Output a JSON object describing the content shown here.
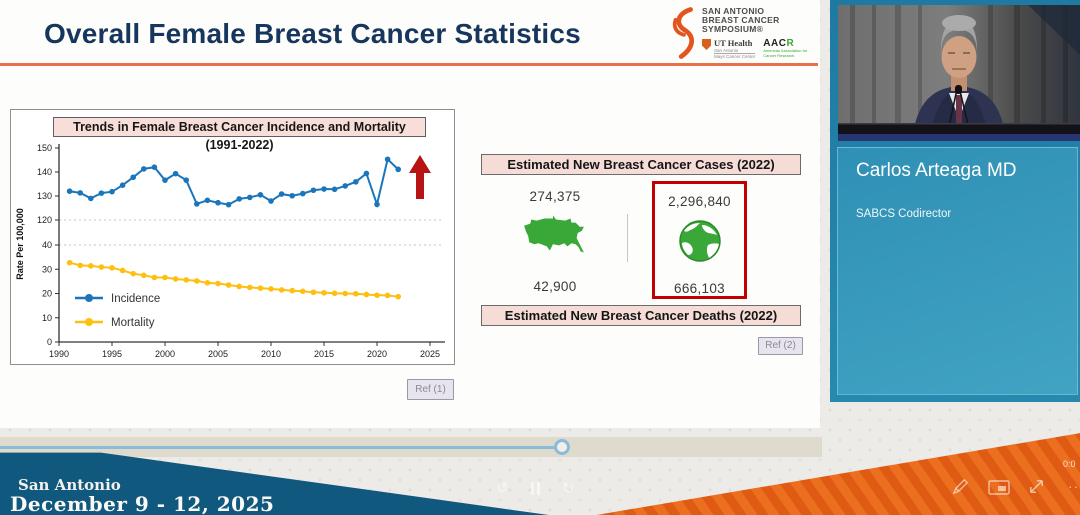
{
  "slide": {
    "title": "Overall Female Breast Cancer Statistics",
    "logo": {
      "org_lines": [
        "SAN ANTONIO",
        "BREAST CANCER",
        "SYMPOSIUM®"
      ],
      "ut_health": "UT Health",
      "ut_sub": "San Antonio",
      "ut_center": "Mays Cancer Center",
      "aacr": "AAC",
      "aacr_r": "R",
      "aacr_sub": "American Association for Cancer Research"
    },
    "chart_ref_label": "Ref (1)",
    "stats_ref_label": "Ref (2)",
    "stats": {
      "cases_header": "Estimated New Breast Cancer Cases (2022)",
      "deaths_header": "Estimated New Breast Cancer Deaths (2022)",
      "us": {
        "cases": "274,375",
        "deaths": "42,900"
      },
      "world": {
        "cases": "2,296,840",
        "deaths": "666,103"
      }
    }
  },
  "chart_data": {
    "type": "line",
    "title": "Trends in Female Breast Cancer Incidence and Mortality (1991-2022)",
    "xlabel": "",
    "ylabel": "Rate Per 100,000",
    "xlim": [
      1990,
      2025
    ],
    "broken_y_axis": true,
    "y_ticks_upper": [
      120,
      130,
      140,
      150
    ],
    "y_ticks_lower": [
      0,
      10,
      20,
      30,
      40
    ],
    "x_ticks": [
      1990,
      1995,
      2000,
      2005,
      2010,
      2015,
      2020,
      2025
    ],
    "dotted_gridlines_at": [
      120,
      40
    ],
    "legend_position": "inside-bottom-left",
    "years": [
      1991,
      1992,
      1993,
      1994,
      1995,
      1996,
      1997,
      1998,
      1999,
      2000,
      2001,
      2002,
      2003,
      2004,
      2005,
      2006,
      2007,
      2008,
      2009,
      2010,
      2011,
      2012,
      2013,
      2014,
      2015,
      2016,
      2017,
      2018,
      2019,
      2020,
      2021,
      2022
    ],
    "series": [
      {
        "name": "Incidence",
        "color": "#1b75bb",
        "values": [
          132,
          131.3,
          129,
          131.2,
          131.8,
          134.5,
          137.8,
          141.3,
          142,
          136.6,
          139.3,
          136.6,
          126.7,
          128.2,
          127.2,
          126.4,
          128.8,
          129.4,
          130.5,
          127.9,
          130.8,
          130.1,
          131,
          132.4,
          132.9,
          132.8,
          134.2,
          135.9,
          139.4,
          126.5,
          145.3,
          141.1
        ]
      },
      {
        "name": "Mortality",
        "color": "#fdc010",
        "values": [
          32.7,
          31.6,
          31.4,
          30.9,
          30.6,
          29.5,
          28.2,
          27.5,
          26.6,
          26.6,
          26,
          25.6,
          25.2,
          24.4,
          24.1,
          23.5,
          22.9,
          22.5,
          22.2,
          21.9,
          21.5,
          21.2,
          20.9,
          20.5,
          20.3,
          20.1,
          20,
          19.9,
          19.6,
          19.3,
          19.2,
          18.7
        ]
      }
    ],
    "annotation": {
      "type": "up-arrow",
      "color": "#b81414"
    }
  },
  "speaker": {
    "name": "Carlos Arteaga MD",
    "role": "SABCS Codirector"
  },
  "footer": {
    "location": "San Antonio",
    "dates": "December 9 - 12, 2025",
    "time_left_fragment": "24",
    "time_right_fragment": "0:0"
  },
  "icons": {
    "annotate": "pencil-icon",
    "pip": "picture-in-picture-icon",
    "fullscreen": "expand-icon",
    "more": "dots-icon",
    "rewind": "rewind-icon",
    "pause": "pause-icon",
    "forward": "forward-icon"
  },
  "colors": {
    "title_navy": "#17365d",
    "accent_orange": "#e8714a",
    "header_pink": "#f5dcd7",
    "red_box": "#c00000",
    "chart_blue": "#1b75bb",
    "chart_yellow": "#fdc010",
    "arrow_red": "#b81414",
    "map_green": "#3aa838",
    "banner_blue": "#11587e",
    "banner_orange": "#df5b13",
    "panel_teal": "#2889ae",
    "progress_blue": "#8abbd9"
  }
}
